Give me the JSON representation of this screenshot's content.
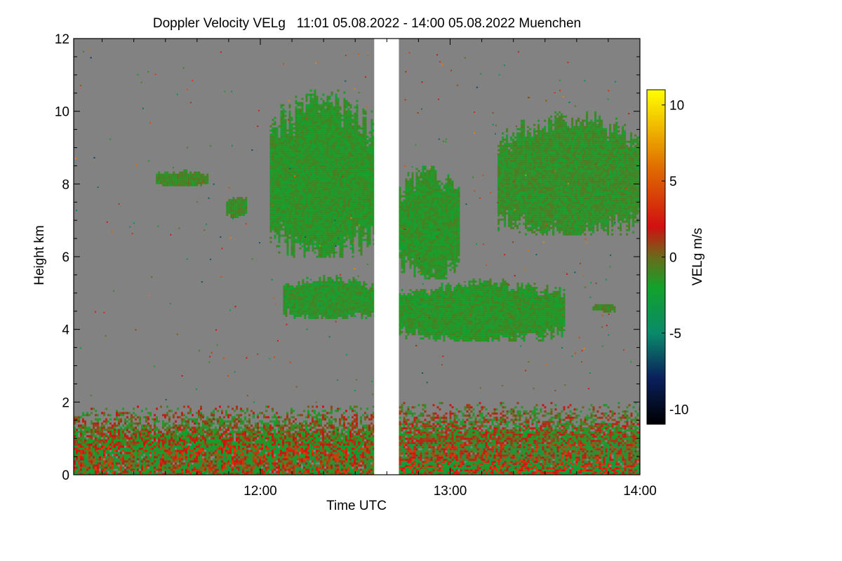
{
  "chart_data": {
    "type": "heatmap",
    "title": "Doppler Velocity VELg   11:01 05.08.2022 - 14:00 05.08.2022 Muenchen",
    "xlabel": "Time UTC",
    "ylabel": "Height km",
    "colorbar_label": "VELg m/s",
    "x_range_hours": [
      11.0167,
      14.0
    ],
    "y_range_km": [
      0,
      12
    ],
    "x_ticks": [
      {
        "value": 12.0,
        "label": "12:00"
      },
      {
        "value": 13.0,
        "label": "13:00"
      },
      {
        "value": 14.0,
        "label": "14:00"
      }
    ],
    "y_ticks": [
      {
        "value": 0,
        "label": "0"
      },
      {
        "value": 2,
        "label": "2"
      },
      {
        "value": 4,
        "label": "4"
      },
      {
        "value": 6,
        "label": "6"
      },
      {
        "value": 8,
        "label": "8"
      },
      {
        "value": 10,
        "label": "10"
      },
      {
        "value": 12,
        "label": "12"
      }
    ],
    "colorbar_range": [
      -11,
      11
    ],
    "colorbar_ticks": [
      {
        "value": 10,
        "label": "10"
      },
      {
        "value": 5,
        "label": "5"
      },
      {
        "value": 0,
        "label": "0"
      },
      {
        "value": -5,
        "label": "-5"
      },
      {
        "value": -10,
        "label": "-10"
      }
    ],
    "colormap_stops": [
      {
        "value": -11,
        "color": "#000000"
      },
      {
        "value": -8,
        "color": "#0a1f5c"
      },
      {
        "value": -5,
        "color": "#0a8a6a"
      },
      {
        "value": -2,
        "color": "#12a22a"
      },
      {
        "value": 0,
        "color": "#6a6a1a"
      },
      {
        "value": 2,
        "color": "#d01010"
      },
      {
        "value": 6,
        "color": "#e07000"
      },
      {
        "value": 11,
        "color": "#ffff00"
      }
    ],
    "background_color": "#828282",
    "data_gap_hours": [
      12.6,
      12.73
    ],
    "regions": [
      {
        "name": "boundary-layer-left",
        "t": [
          11.0167,
          12.6
        ],
        "h": [
          0.0,
          1.9
        ],
        "v_mean": 0.5,
        "note": "mixed up/down drafts, red and green"
      },
      {
        "name": "boundary-layer-right",
        "t": [
          12.73,
          14.0
        ],
        "h": [
          0.0,
          2.0
        ],
        "v_mean": 0.5,
        "note": "mixed up/down drafts, red and green"
      },
      {
        "name": "small-cloud-8km",
        "t": [
          11.45,
          11.72
        ],
        "h": [
          7.95,
          8.4
        ],
        "v_mean": -1.0
      },
      {
        "name": "small-cloud-7.5km",
        "t": [
          11.82,
          11.92
        ],
        "h": [
          7.1,
          7.7
        ],
        "v_mean": -1.2
      },
      {
        "name": "upper-cloud-left",
        "t": [
          12.05,
          12.6
        ],
        "h": [
          6.0,
          10.6
        ],
        "v_mean": -1.5
      },
      {
        "name": "mid-cloud-left",
        "t": [
          12.12,
          12.6
        ],
        "h": [
          4.3,
          5.5
        ],
        "v_mean": -1.5
      },
      {
        "name": "upper-cloud-right",
        "t": [
          12.73,
          13.05
        ],
        "h": [
          5.4,
          8.5
        ],
        "v_mean": -1.5
      },
      {
        "name": "mid-cloud-right",
        "t": [
          12.73,
          13.6
        ],
        "h": [
          3.7,
          5.4
        ],
        "v_mean": -1.5
      },
      {
        "name": "cirrus-right",
        "t": [
          13.25,
          14.0
        ],
        "h": [
          6.6,
          10.0
        ],
        "v_mean": -1.3
      },
      {
        "name": "small-cloud-4.6km",
        "t": [
          13.75,
          13.87
        ],
        "h": [
          4.5,
          4.75
        ],
        "v_mean": -1.0
      }
    ]
  }
}
